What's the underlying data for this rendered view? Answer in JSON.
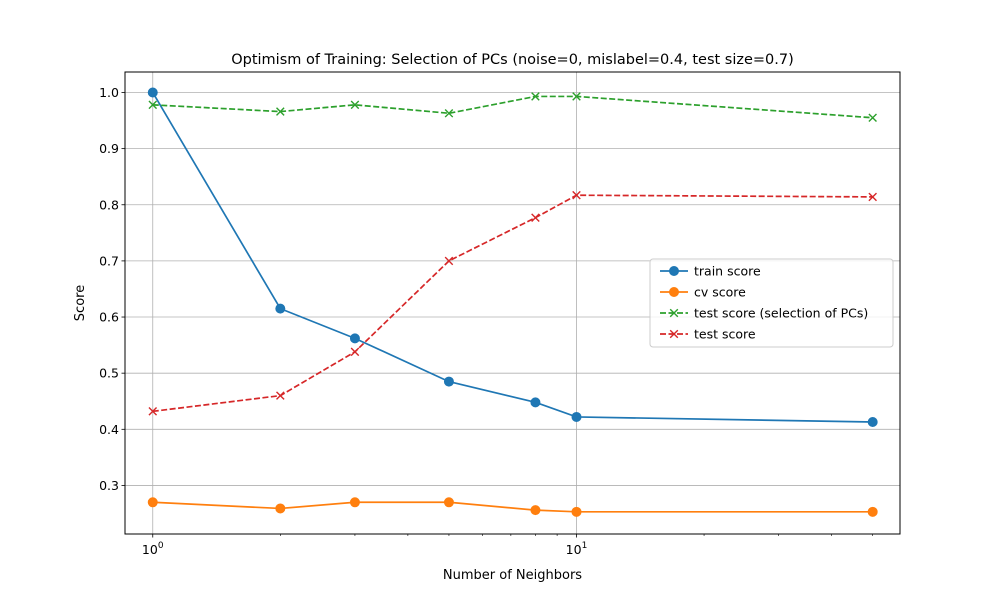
{
  "chart_data": {
    "type": "line",
    "title": "Optimism of Training: Selection of PCs (noise=0, mislabel=0.4, test size=0.7)",
    "xlabel": "Number of Neighbors",
    "ylabel": "Score",
    "xscale": "log",
    "xlim": [
      0.86,
      58
    ],
    "ylim": [
      0.2135,
      1.0365
    ],
    "grid": "major",
    "legend_position": "center-right",
    "x_ticks": [
      {
        "value": 1,
        "label": "10^0"
      },
      {
        "value": 10,
        "label": "10^1"
      }
    ],
    "y_ticks": [
      {
        "value": 0.3,
        "label": "0.3"
      },
      {
        "value": 0.4,
        "label": "0.4"
      },
      {
        "value": 0.5,
        "label": "0.5"
      },
      {
        "value": 0.6,
        "label": "0.6"
      },
      {
        "value": 0.7,
        "label": "0.7"
      },
      {
        "value": 0.8,
        "label": "0.8"
      },
      {
        "value": 0.9,
        "label": "0.9"
      },
      {
        "value": 1.0,
        "label": "1.0"
      }
    ],
    "x": [
      1,
      2,
      3,
      5,
      8,
      10,
      50
    ],
    "series": [
      {
        "name": "train score",
        "values": [
          1.0,
          0.615,
          0.562,
          0.485,
          0.448,
          0.422,
          0.413
        ],
        "color": "#1f77b4",
        "linestyle": "solid",
        "marker": "circle"
      },
      {
        "name": "cv score",
        "values": [
          0.27,
          0.259,
          0.27,
          0.27,
          0.256,
          0.253,
          0.253
        ],
        "color": "#ff7f0e",
        "linestyle": "solid",
        "marker": "circle"
      },
      {
        "name": "test score (selection of PCs)",
        "values": [
          0.978,
          0.966,
          0.978,
          0.963,
          0.993,
          0.993,
          0.955
        ],
        "color": "#2ca02c",
        "linestyle": "dashed",
        "marker": "x"
      },
      {
        "name": "test score",
        "values": [
          0.432,
          0.46,
          0.538,
          0.7,
          0.777,
          0.817,
          0.814
        ],
        "color": "#d62728",
        "linestyle": "dashed",
        "marker": "x"
      }
    ]
  }
}
